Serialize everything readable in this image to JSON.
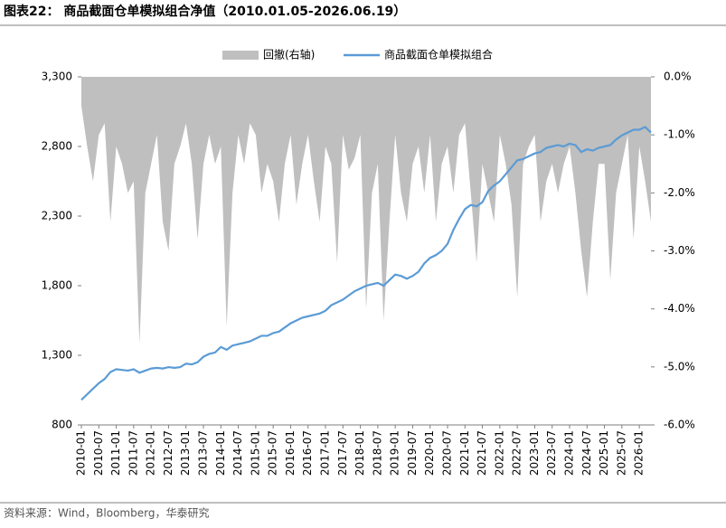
{
  "chart_data": {
    "type": "line_area",
    "title": "图表22： 商品截面仓单模拟组合净值（2010.01.05-2026.06.19）",
    "source": "资料来源：Wind，Bloomberg，华泰研究",
    "x": [
      "2010-01",
      "2010-03",
      "2010-05",
      "2010-07",
      "2010-09",
      "2010-11",
      "2011-01",
      "2011-03",
      "2011-05",
      "2011-07",
      "2011-09",
      "2011-11",
      "2012-01",
      "2012-03",
      "2012-05",
      "2012-07",
      "2012-09",
      "2012-11",
      "2013-01",
      "2013-03",
      "2013-05",
      "2013-07",
      "2013-09",
      "2013-11",
      "2014-01",
      "2014-03",
      "2014-05",
      "2014-07",
      "2014-09",
      "2014-11",
      "2015-01",
      "2015-03",
      "2015-05",
      "2015-07",
      "2015-09",
      "2015-11",
      "2016-01",
      "2016-03",
      "2016-05",
      "2016-07",
      "2016-09",
      "2016-11",
      "2017-01",
      "2017-03",
      "2017-05",
      "2017-07",
      "2017-09",
      "2017-11",
      "2018-01",
      "2018-03",
      "2018-05",
      "2018-07",
      "2018-09",
      "2018-11",
      "2019-01",
      "2019-03",
      "2019-05",
      "2019-07",
      "2019-09",
      "2019-11",
      "2020-01",
      "2020-03",
      "2020-05",
      "2020-07",
      "2020-09",
      "2020-11",
      "2021-01",
      "2021-03",
      "2021-05",
      "2021-07",
      "2021-09",
      "2021-11",
      "2022-01",
      "2022-03",
      "2022-05",
      "2022-07",
      "2022-09",
      "2022-11",
      "2023-01",
      "2023-03",
      "2023-05",
      "2023-07",
      "2023-09",
      "2023-11",
      "2024-01",
      "2024-03",
      "2024-05",
      "2024-07",
      "2024-09",
      "2024-11",
      "2025-01",
      "2025-03",
      "2025-05",
      "2025-07",
      "2025-09",
      "2025-11",
      "2026-01",
      "2026-03",
      "2026-05"
    ],
    "xticks": [
      "2010-01",
      "2010-07",
      "2011-01",
      "2011-07",
      "2012-01",
      "2012-07",
      "2013-01",
      "2013-07",
      "2014-01",
      "2014-07",
      "2015-01",
      "2015-07",
      "2016-01",
      "2016-07",
      "2017-01",
      "2017-07",
      "2018-01",
      "2018-07",
      "2019-01",
      "2019-07",
      "2020-01",
      "2020-07",
      "2021-01",
      "2021-07",
      "2022-01",
      "2022-07",
      "2023-01",
      "2023-07",
      "2024-01",
      "2024-07",
      "2025-01",
      "2025-07",
      "2026-01"
    ],
    "series": [
      {
        "name": "回撤(右轴)",
        "color": "#bfbfbf",
        "axis": "y2",
        "kind": "area",
        "values": [
          -0.5,
          -1.2,
          -1.8,
          -1.0,
          -0.8,
          -2.5,
          -1.2,
          -1.5,
          -2.0,
          -1.8,
          -4.6,
          -2.0,
          -1.5,
          -1.0,
          -2.5,
          -3.0,
          -1.5,
          -1.2,
          -0.8,
          -1.5,
          -2.8,
          -1.5,
          -1.0,
          -1.5,
          -1.2,
          -4.3,
          -2.0,
          -1.0,
          -1.5,
          -0.8,
          -1.0,
          -2.0,
          -1.5,
          -1.8,
          -2.5,
          -1.5,
          -1.0,
          -2.2,
          -1.5,
          -1.0,
          -1.8,
          -2.5,
          -1.2,
          -1.5,
          -3.2,
          -1.0,
          -1.6,
          -1.4,
          -1.0,
          -4.0,
          -2.0,
          -1.5,
          -4.2,
          -2.5,
          -1.0,
          -2.0,
          -2.5,
          -1.5,
          -1.2,
          -2.0,
          -1.0,
          -2.5,
          -1.5,
          -1.2,
          -2.0,
          -1.0,
          -0.8,
          -2.0,
          -3.2,
          -1.5,
          -2.0,
          -2.5,
          -1.0,
          -1.5,
          -2.2,
          -3.8,
          -1.5,
          -1.2,
          -1.0,
          -2.5,
          -1.8,
          -1.5,
          -2.0,
          -1.5,
          -1.2,
          -2.0,
          -3.0,
          -3.8,
          -2.5,
          -1.5,
          -1.5,
          -3.5,
          -2.0,
          -1.5,
          -1.0,
          -2.8,
          -1.2,
          -1.8,
          -2.5
        ]
      },
      {
        "name": "商品截面仓单模拟组合",
        "color": "#5b9bd5",
        "axis": "y",
        "kind": "line",
        "values": [
          980,
          1020,
          1060,
          1100,
          1130,
          1180,
          1200,
          1195,
          1190,
          1200,
          1175,
          1190,
          1205,
          1210,
          1205,
          1215,
          1210,
          1215,
          1240,
          1235,
          1250,
          1290,
          1310,
          1320,
          1360,
          1340,
          1370,
          1380,
          1390,
          1400,
          1420,
          1440,
          1440,
          1460,
          1470,
          1500,
          1530,
          1550,
          1570,
          1580,
          1590,
          1600,
          1620,
          1660,
          1680,
          1700,
          1730,
          1760,
          1780,
          1800,
          1810,
          1820,
          1800,
          1840,
          1880,
          1870,
          1850,
          1870,
          1900,
          1960,
          2000,
          2020,
          2050,
          2100,
          2200,
          2280,
          2350,
          2380,
          2370,
          2400,
          2480,
          2520,
          2550,
          2600,
          2650,
          2700,
          2710,
          2730,
          2750,
          2760,
          2790,
          2800,
          2810,
          2800,
          2820,
          2810,
          2760,
          2780,
          2770,
          2790,
          2800,
          2810,
          2850,
          2880,
          2900,
          2920,
          2920,
          2940,
          2900
        ]
      }
    ],
    "ylim": [
      800,
      3300
    ],
    "yticks": [
      800,
      {
        "value": 1300,
        "label": "1,300"
      },
      {
        "value": 1800,
        "label": "1,800"
      },
      {
        "value": 2300,
        "label": "2,300"
      },
      {
        "value": 2800,
        "label": "2,800"
      },
      {
        "value": 3300,
        "label": "3,300"
      }
    ],
    "y2lim": [
      -6,
      0
    ],
    "y2ticks": [
      {
        "value": -6,
        "label": "-6.0%"
      },
      {
        "value": -5,
        "label": "-5.0%"
      },
      {
        "value": -4,
        "label": "-4.0%"
      },
      {
        "value": -3,
        "label": "-3.0%"
      },
      {
        "value": -2,
        "label": "-2.0%"
      },
      {
        "value": -1,
        "label": "-1.0%"
      },
      {
        "value": 0,
        "label": "0.0%"
      }
    ],
    "legend": "top"
  }
}
